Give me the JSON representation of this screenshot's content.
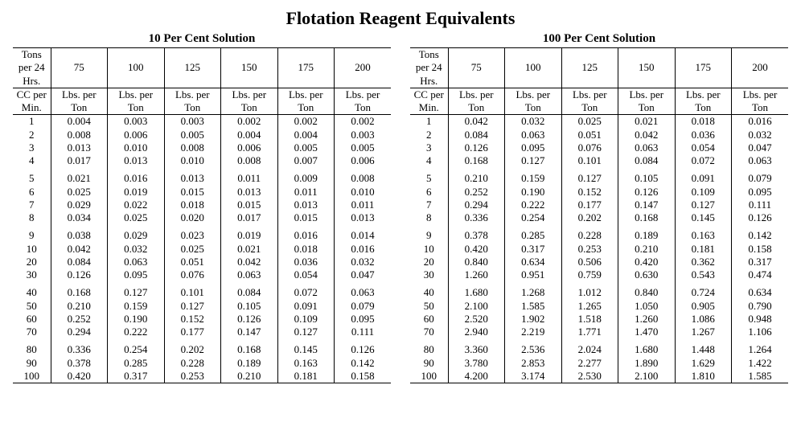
{
  "title": "Flotation Reagent Equivalents",
  "tables": [
    {
      "subtitle": "10 Per Cent Solution",
      "header_top": [
        "Tons per 24 Hrs.",
        "75",
        "100",
        "125",
        "150",
        "175",
        "200"
      ],
      "header_bottom": [
        "CC per Min.",
        "Lbs. per Ton",
        "Lbs. per Ton",
        "Lbs. per Ton",
        "Lbs. per Ton",
        "Lbs. per Ton",
        "Lbs. per Ton"
      ],
      "groups": [
        [
          [
            "1",
            "0.004",
            "0.003",
            "0.003",
            "0.002",
            "0.002",
            "0.002"
          ],
          [
            "2",
            "0.008",
            "0.006",
            "0.005",
            "0.004",
            "0.004",
            "0.003"
          ],
          [
            "3",
            "0.013",
            "0.010",
            "0.008",
            "0.006",
            "0.005",
            "0.005"
          ],
          [
            "4",
            "0.017",
            "0.013",
            "0.010",
            "0.008",
            "0.007",
            "0.006"
          ]
        ],
        [
          [
            "5",
            "0.021",
            "0.016",
            "0.013",
            "0.011",
            "0.009",
            "0.008"
          ],
          [
            "6",
            "0.025",
            "0.019",
            "0.015",
            "0.013",
            "0.011",
            "0.010"
          ],
          [
            "7",
            "0.029",
            "0.022",
            "0.018",
            "0.015",
            "0.013",
            "0.011"
          ],
          [
            "8",
            "0.034",
            "0.025",
            "0.020",
            "0.017",
            "0.015",
            "0.013"
          ]
        ],
        [
          [
            "9",
            "0.038",
            "0.029",
            "0.023",
            "0.019",
            "0.016",
            "0.014"
          ],
          [
            "10",
            "0.042",
            "0.032",
            "0.025",
            "0.021",
            "0.018",
            "0.016"
          ],
          [
            "20",
            "0.084",
            "0.063",
            "0.051",
            "0.042",
            "0.036",
            "0.032"
          ],
          [
            "30",
            "0.126",
            "0.095",
            "0.076",
            "0.063",
            "0.054",
            "0.047"
          ]
        ],
        [
          [
            "40",
            "0.168",
            "0.127",
            "0.101",
            "0.084",
            "0.072",
            "0.063"
          ],
          [
            "50",
            "0.210",
            "0.159",
            "0.127",
            "0.105",
            "0.091",
            "0.079"
          ],
          [
            "60",
            "0.252",
            "0.190",
            "0.152",
            "0.126",
            "0.109",
            "0.095"
          ],
          [
            "70",
            "0.294",
            "0.222",
            "0.177",
            "0.147",
            "0.127",
            "0.111"
          ]
        ],
        [
          [
            "80",
            "0.336",
            "0.254",
            "0.202",
            "0.168",
            "0.145",
            "0.126"
          ],
          [
            "90",
            "0.378",
            "0.285",
            "0.228",
            "0.189",
            "0.163",
            "0.142"
          ],
          [
            "100",
            "0.420",
            "0.317",
            "0.253",
            "0.210",
            "0.181",
            "0.158"
          ]
        ]
      ]
    },
    {
      "subtitle": "100 Per Cent Solution",
      "header_top": [
        "Tons per 24 Hrs.",
        "75",
        "100",
        "125",
        "150",
        "175",
        "200"
      ],
      "header_bottom": [
        "CC per Min.",
        "Lbs. per Ton",
        "Lbs. per Ton",
        "Lbs. per Ton",
        "Lbs. per Ton",
        "Lbs. per Ton",
        "Lbs. per Ton"
      ],
      "groups": [
        [
          [
            "1",
            "0.042",
            "0.032",
            "0.025",
            "0.021",
            "0.018",
            "0.016"
          ],
          [
            "2",
            "0.084",
            "0.063",
            "0.051",
            "0.042",
            "0.036",
            "0.032"
          ],
          [
            "3",
            "0.126",
            "0.095",
            "0.076",
            "0.063",
            "0.054",
            "0.047"
          ],
          [
            "4",
            "0.168",
            "0.127",
            "0.101",
            "0.084",
            "0.072",
            "0.063"
          ]
        ],
        [
          [
            "5",
            "0.210",
            "0.159",
            "0.127",
            "0.105",
            "0.091",
            "0.079"
          ],
          [
            "6",
            "0.252",
            "0.190",
            "0.152",
            "0.126",
            "0.109",
            "0.095"
          ],
          [
            "7",
            "0.294",
            "0.222",
            "0.177",
            "0.147",
            "0.127",
            "0.111"
          ],
          [
            "8",
            "0.336",
            "0.254",
            "0.202",
            "0.168",
            "0.145",
            "0.126"
          ]
        ],
        [
          [
            "9",
            "0.378",
            "0.285",
            "0.228",
            "0.189",
            "0.163",
            "0.142"
          ],
          [
            "10",
            "0.420",
            "0.317",
            "0.253",
            "0.210",
            "0.181",
            "0.158"
          ],
          [
            "20",
            "0.840",
            "0.634",
            "0.506",
            "0.420",
            "0.362",
            "0.317"
          ],
          [
            "30",
            "1.260",
            "0.951",
            "0.759",
            "0.630",
            "0.543",
            "0.474"
          ]
        ],
        [
          [
            "40",
            "1.680",
            "1.268",
            "1.012",
            "0.840",
            "0.724",
            "0.634"
          ],
          [
            "50",
            "2.100",
            "1.585",
            "1.265",
            "1.050",
            "0.905",
            "0.790"
          ],
          [
            "60",
            "2.520",
            "1.902",
            "1.518",
            "1.260",
            "1.086",
            "0.948"
          ],
          [
            "70",
            "2.940",
            "2.219",
            "1.771",
            "1.470",
            "1.267",
            "1.106"
          ]
        ],
        [
          [
            "80",
            "3.360",
            "2.536",
            "2.024",
            "1.680",
            "1.448",
            "1.264"
          ],
          [
            "90",
            "3.780",
            "2.853",
            "2.277",
            "1.890",
            "1.629",
            "1.422"
          ],
          [
            "100",
            "4.200",
            "3.174",
            "2.530",
            "2.100",
            "1.810",
            "1.585"
          ]
        ]
      ]
    }
  ]
}
